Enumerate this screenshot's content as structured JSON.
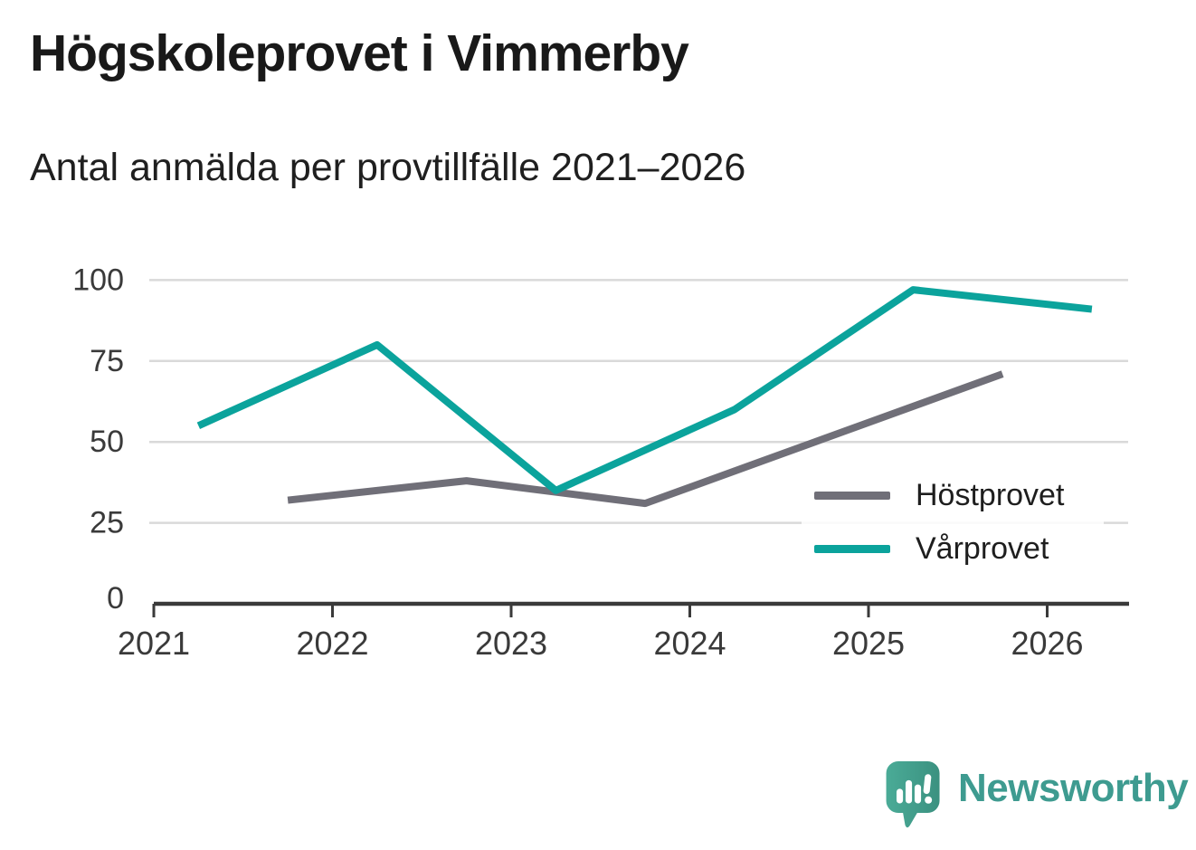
{
  "header": {
    "title": "Högskoleprovet i Vimmerby",
    "subtitle": "Antal anmälda per provtillfälle 2021–2026"
  },
  "chart_data": {
    "type": "line",
    "title": "Högskoleprovet i Vimmerby",
    "subtitle": "Antal anmälda per provtillfälle 2021–2026",
    "xlabel": "",
    "ylabel": "",
    "x_ticks": [
      2021,
      2022,
      2023,
      2024,
      2025,
      2026
    ],
    "y_ticks": [
      0,
      25,
      50,
      75,
      100
    ],
    "ylim": [
      0,
      100
    ],
    "xlim": [
      2021,
      2026.45
    ],
    "grid": "horizontal",
    "legend_position": "inside-right",
    "series": [
      {
        "name": "Höstprovet",
        "color": "#706f78",
        "x": [
          2021.75,
          2022.75,
          2023.75,
          2024.75,
          2025.75
        ],
        "values": [
          32,
          38,
          31,
          51,
          71
        ]
      },
      {
        "name": "Vårprovet",
        "color": "#0ba39c",
        "x": [
          2021.25,
          2022.25,
          2023.25,
          2024.25,
          2025.25,
          2026.25
        ],
        "values": [
          55,
          80,
          35,
          60,
          97,
          91
        ]
      }
    ]
  },
  "colors": {
    "axis": "#3a3a3a",
    "grid": "#d9d9d9",
    "tick_text": "#3a3a3a",
    "background": "#ffffff"
  },
  "branding": {
    "logo_text": "Newsworthy",
    "logo_color": "#3e9b90",
    "logo_mark_color": "#46a28f",
    "logo_mark_dark": "#3b9180"
  }
}
